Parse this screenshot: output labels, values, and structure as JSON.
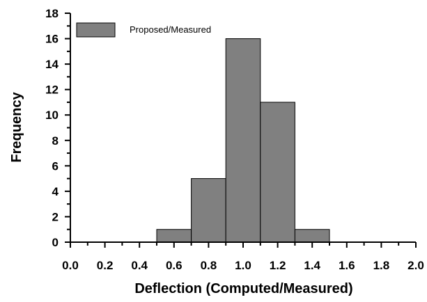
{
  "chart_data": {
    "type": "bar",
    "bins": [
      {
        "start": 0.5,
        "end": 0.7,
        "value": 1
      },
      {
        "start": 0.7,
        "end": 0.9,
        "value": 5
      },
      {
        "start": 0.9,
        "end": 1.1,
        "value": 16
      },
      {
        "start": 1.1,
        "end": 1.3,
        "value": 11
      },
      {
        "start": 1.3,
        "end": 1.5,
        "value": 1
      }
    ],
    "series": [
      {
        "name": "Proposed/Measured"
      }
    ],
    "xlabel": "Deflection (Computed/Measured)",
    "ylabel": "Frequency",
    "xlim": [
      0.0,
      2.0
    ],
    "ylim": [
      0,
      18
    ],
    "x_ticks": [
      "0.0",
      "0.2",
      "0.4",
      "0.6",
      "0.8",
      "1.0",
      "1.2",
      "1.4",
      "1.6",
      "1.8",
      "2.0"
    ],
    "y_ticks": [
      "0",
      "2",
      "4",
      "6",
      "8",
      "10",
      "12",
      "14",
      "16",
      "18"
    ],
    "x_tick_values": [
      0.0,
      0.2,
      0.4,
      0.6,
      0.8,
      1.0,
      1.2,
      1.4,
      1.6,
      1.8,
      2.0
    ],
    "y_tick_values": [
      0,
      2,
      4,
      6,
      8,
      10,
      12,
      14,
      16,
      18
    ],
    "grid": false,
    "legend": "top-left",
    "bar_color": "#808080",
    "bar_edge_color": "#000000"
  }
}
